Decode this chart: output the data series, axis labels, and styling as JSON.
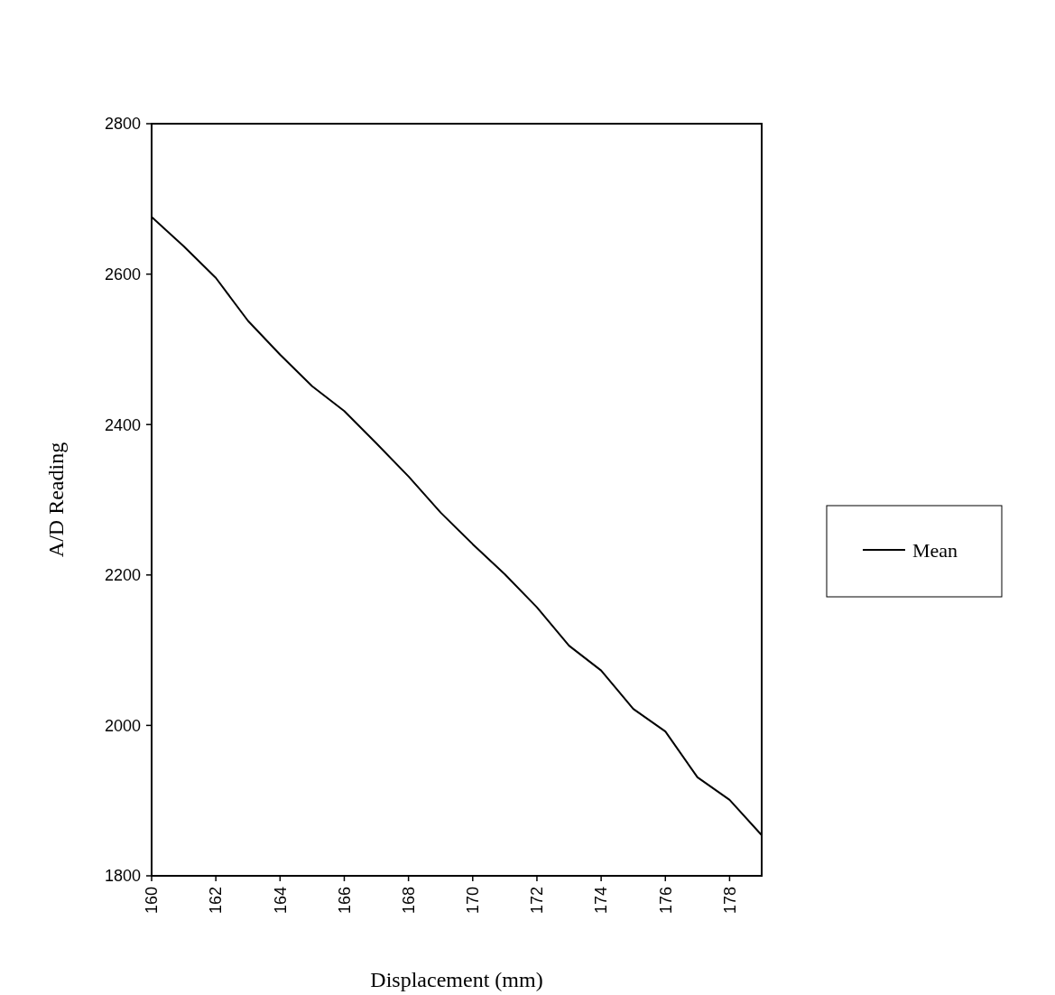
{
  "chart_data": {
    "type": "line",
    "xlabel": "Displacement (mm)",
    "ylabel": "A/D Reading",
    "x": [
      160,
      161,
      162,
      163,
      164,
      165,
      166,
      167,
      168,
      169,
      170,
      171,
      172,
      173,
      174,
      175,
      176,
      177,
      178,
      179
    ],
    "series": [
      {
        "name": "Mean",
        "color": "#000000",
        "values": [
          2676,
          2637,
          2595,
          2538,
          2493,
          2451,
          2418,
          2375,
          2331,
          2283,
          2241,
          2201,
          2157,
          2106,
          2073,
          2022,
          1992,
          1931,
          1901,
          1854
        ]
      }
    ],
    "xlim": [
      160,
      179
    ],
    "xticks": [
      160,
      162,
      164,
      166,
      168,
      170,
      172,
      174,
      176,
      178
    ],
    "ylim": [
      1800,
      2800
    ],
    "yticks": [
      1800,
      2000,
      2200,
      2400,
      2600,
      2800
    ],
    "grid": false,
    "legend": "right",
    "marker": "none",
    "line_style": "solid"
  }
}
